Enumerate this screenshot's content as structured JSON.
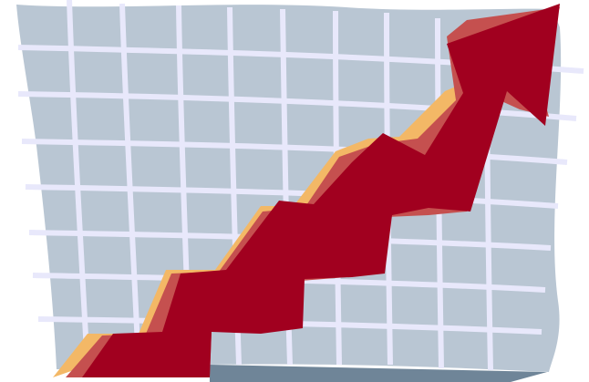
{
  "illustration": {
    "subject": "growth-arrow-over-grid",
    "colors": {
      "background": "#ffffff",
      "grid_panel": "#b9c6d3",
      "grid_shadow": "#6f8598",
      "grid_lines": "#e8e8fb",
      "arrow_main": "#a1001f",
      "arrow_highlight": "#c5504f",
      "arrow_shadow": "#f3b866"
    }
  }
}
